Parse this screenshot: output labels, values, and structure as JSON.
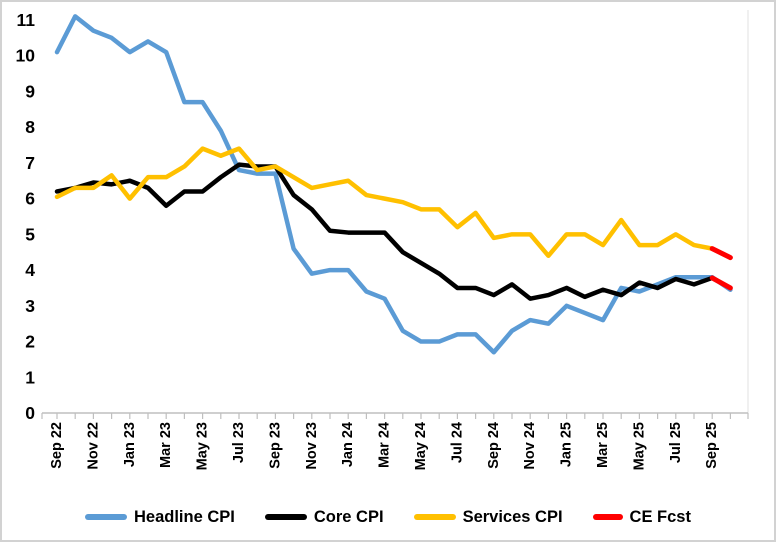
{
  "chart_data": {
    "type": "line",
    "title": "",
    "xlabel": "",
    "ylabel": "",
    "ylim": [
      0,
      11
    ],
    "ytick_step": 1,
    "ytick_labels": [
      "0",
      "1",
      "2",
      "3",
      "4",
      "5",
      "6",
      "7",
      "8",
      "9",
      "10",
      "11"
    ],
    "grid": false,
    "legend_position": "bottom",
    "months": [
      "Sep 22",
      "Oct 22",
      "Nov 22",
      "Dec 22",
      "Jan 23",
      "Feb 23",
      "Mar 23",
      "Apr 23",
      "May 23",
      "Jun 23",
      "Jul 23",
      "Aug 23",
      "Sep 23",
      "Oct 23",
      "Nov 23",
      "Dec 23",
      "Jan 24",
      "Feb 24",
      "Mar 24",
      "Apr 24",
      "May 24",
      "Jun 24",
      "Jul 24",
      "Aug 24",
      "Sep 24",
      "Oct 24",
      "Nov 24",
      "Dec 24",
      "Jan 25",
      "Feb 25",
      "Mar 25",
      "Apr 25",
      "May 25",
      "Jun 25",
      "Jul 25",
      "Aug 25",
      "Sep 25"
    ],
    "x_tick_labels": [
      "Sep 22",
      "Nov 22",
      "Jan 23",
      "Mar 23",
      "May 23",
      "Jul 23",
      "Sep 23",
      "Nov 23",
      "Jan 24",
      "Mar 24",
      "May 24",
      "Jul 24",
      "Sep 24",
      "Nov 24",
      "Jan 25",
      "Mar 25",
      "May 25",
      "Jul 25",
      "Sep 25"
    ],
    "x_label_every": 2,
    "series": [
      {
        "name": "Headline CPI",
        "color": "#5B9BD5",
        "values": [
          10.1,
          11.1,
          10.7,
          10.5,
          10.1,
          10.4,
          10.1,
          8.7,
          8.7,
          7.9,
          6.8,
          6.7,
          6.7,
          4.6,
          3.9,
          4.0,
          4.0,
          3.4,
          3.2,
          2.3,
          2.0,
          2.0,
          2.2,
          2.2,
          1.7,
          2.3,
          2.6,
          2.5,
          3.0,
          2.8,
          2.6,
          3.5,
          3.4,
          3.6,
          3.8,
          3.8,
          3.8
        ]
      },
      {
        "name": "Core CPI",
        "color": "#000000",
        "values": [
          6.2,
          6.3,
          6.45,
          6.4,
          6.5,
          6.3,
          5.8,
          6.2,
          6.2,
          6.6,
          6.95,
          6.9,
          6.9,
          6.1,
          5.7,
          5.1,
          5.05,
          5.05,
          5.05,
          4.5,
          4.2,
          3.9,
          3.5,
          3.5,
          3.3,
          3.6,
          3.2,
          3.3,
          3.5,
          3.25,
          3.45,
          3.3,
          3.65,
          3.5,
          3.75,
          3.6,
          3.78
        ]
      },
      {
        "name": "Services CPI",
        "color": "#FFC000",
        "values": [
          6.05,
          6.3,
          6.3,
          6.65,
          6.0,
          6.6,
          6.6,
          6.9,
          7.4,
          7.2,
          7.4,
          6.8,
          6.9,
          6.6,
          6.3,
          6.4,
          6.5,
          6.1,
          6.0,
          5.9,
          5.7,
          5.7,
          5.2,
          5.6,
          4.9,
          5.0,
          5.0,
          4.4,
          5.0,
          5.0,
          4.7,
          5.4,
          4.7,
          4.7,
          5.0,
          4.7,
          4.6
        ]
      }
    ],
    "forecast": {
      "name": "CE Fcst",
      "color": "#FF0000",
      "from_index": 36,
      "extension_months": 1,
      "segments": [
        {
          "series": "Headline CPI",
          "color": "#5B9BD5",
          "values": [
            3.8,
            3.45
          ]
        },
        {
          "series": "Core CPI",
          "color": "#FF0000",
          "values": [
            3.78,
            3.5
          ]
        },
        {
          "series": "Services CPI",
          "color": "#FF0000",
          "values": [
            4.6,
            4.35
          ]
        }
      ]
    }
  },
  "legend": {
    "items": [
      {
        "label": "Headline CPI",
        "color": "#5B9BD5"
      },
      {
        "label": "Core CPI",
        "color": "#000000"
      },
      {
        "label": "Services CPI",
        "color": "#FFC000"
      },
      {
        "label": "CE Fcst",
        "color": "#FF0000"
      }
    ]
  }
}
